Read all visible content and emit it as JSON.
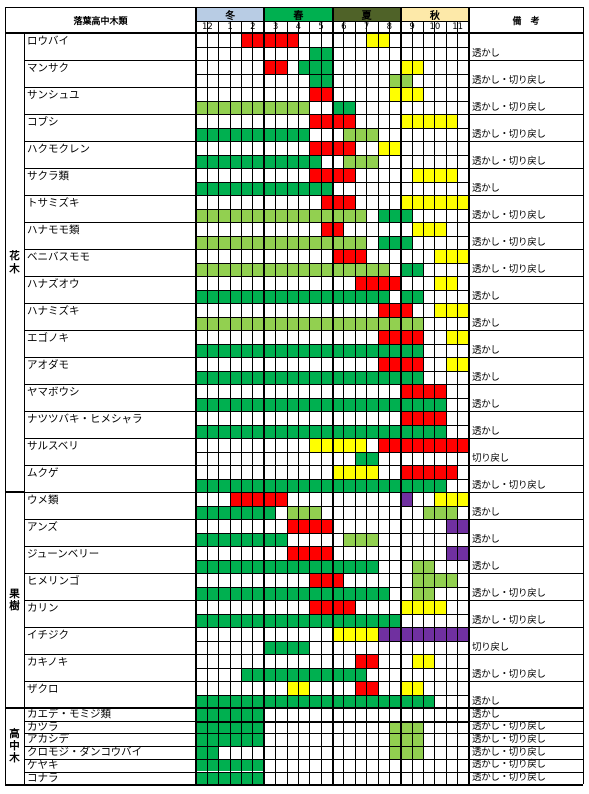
{
  "table_title": "落葉高中木類",
  "remarks_header": "備　考",
  "seasons": [
    {
      "label": "冬",
      "color": "#b8cce4"
    },
    {
      "label": "春",
      "color": "#00b050"
    },
    {
      "label": "夏",
      "color": "#4f6228"
    },
    {
      "label": "秋",
      "color": "#fde9a9"
    }
  ],
  "months": [
    "12",
    "1",
    "2",
    "3",
    "4",
    "5",
    "6",
    "7",
    "8",
    "9",
    "10",
    "11"
  ],
  "legend_colors": {
    "R": "#ff0000",
    "Y": "#ffff00",
    "P": "#7030a0",
    "G": "#00b050",
    "L": "#92d050"
  },
  "categories": [
    {
      "label": "花\n木"
    },
    {
      "label": "果\n樹"
    },
    {
      "label": "高\n中\n木"
    }
  ],
  "trees": [
    {
      "name": "ロウバイ",
      "note": "透かし",
      "top": "...RRRR..YY.......",
      "bot": "....GG............"
    },
    {
      "name": "マンサク",
      "note": "透かし・切り戻し",
      "top": "......RRRR.......YY......",
      "bot": ""
    },
    {
      "name": "サンシュユ",
      "note": "透かし・切り戻し",
      "top": "",
      "bot": ""
    },
    {
      "name": "コブシ",
      "note": "透かし・切り戻し",
      "top": "",
      "bot": ""
    },
    {
      "name": "ハクモクレン",
      "note": "透かし・切り戻し",
      "top": "",
      "bot": ""
    },
    {
      "name": "サクラ類",
      "note": "透かし",
      "top": "",
      "bot": ""
    },
    {
      "name": "トサミズキ",
      "note": "透かし・切り戻し",
      "top": "",
      "bot": ""
    },
    {
      "name": "ハナモモ類",
      "note": "透かし・切り戻し",
      "top": "",
      "bot": ""
    },
    {
      "name": "ベニバスモモ",
      "note": "透かし・切り戻し",
      "top": "",
      "bot": ""
    },
    {
      "name": "ハナズオウ",
      "note": "透かし",
      "top": "",
      "bot": ""
    },
    {
      "name": "ハナミズキ",
      "note": "透かし",
      "top": "",
      "bot": ""
    },
    {
      "name": "エゴノキ",
      "note": "透かし",
      "top": "",
      "bot": ""
    },
    {
      "name": "アオダモ",
      "note": "透かし",
      "top": "",
      "bot": ""
    },
    {
      "name": "ヤマボウシ",
      "note": "透かし",
      "top": "",
      "bot": ""
    },
    {
      "name": "ナツツバキ・ヒメシャラ",
      "note": "透かし",
      "top": "",
      "bot": ""
    },
    {
      "name": "サルスベリ",
      "note": "切り戻し",
      "top": "",
      "bot": ""
    },
    {
      "name": "ムクゲ",
      "note": "透かし・切り戻し",
      "top": "",
      "bot": ""
    },
    {
      "name": "ウメ類",
      "note": "透かし",
      "top": "",
      "bot": ""
    },
    {
      "name": "アンズ",
      "note": "透かし",
      "top": "",
      "bot": ""
    },
    {
      "name": "ジューンベリー",
      "note": "透かし",
      "top": "",
      "bot": ""
    },
    {
      "name": "ヒメリンゴ",
      "note": "透かし・切り戻し",
      "top": "",
      "bot": ""
    },
    {
      "name": "カリン",
      "note": "透かし・切り戻し",
      "top": "",
      "bot": ""
    },
    {
      "name": "イチジク",
      "note": "切り戻し",
      "top": "",
      "bot": ""
    },
    {
      "name": "カキノキ",
      "note": "透かし・切り戻し",
      "top": "",
      "bot": ""
    },
    {
      "name": "ザクロ",
      "note": "透かし",
      "top": "",
      "bot": ""
    }
  ],
  "small_trees": [
    {
      "name": "カエデ・モミジ類",
      "note": "透かし"
    },
    {
      "name": "カツラ",
      "note": "透かし・切り戻し"
    },
    {
      "name": "アカシデ",
      "note": "透かし・切り戻し"
    },
    {
      "name": "クロモジ・ダンコウバイ",
      "note": "透かし・切り戻し"
    },
    {
      "name": "ケヤキ",
      "note": "透かし・切り戻し"
    },
    {
      "name": "コナラ",
      "note": "透かし・切り戻し"
    }
  ]
}
